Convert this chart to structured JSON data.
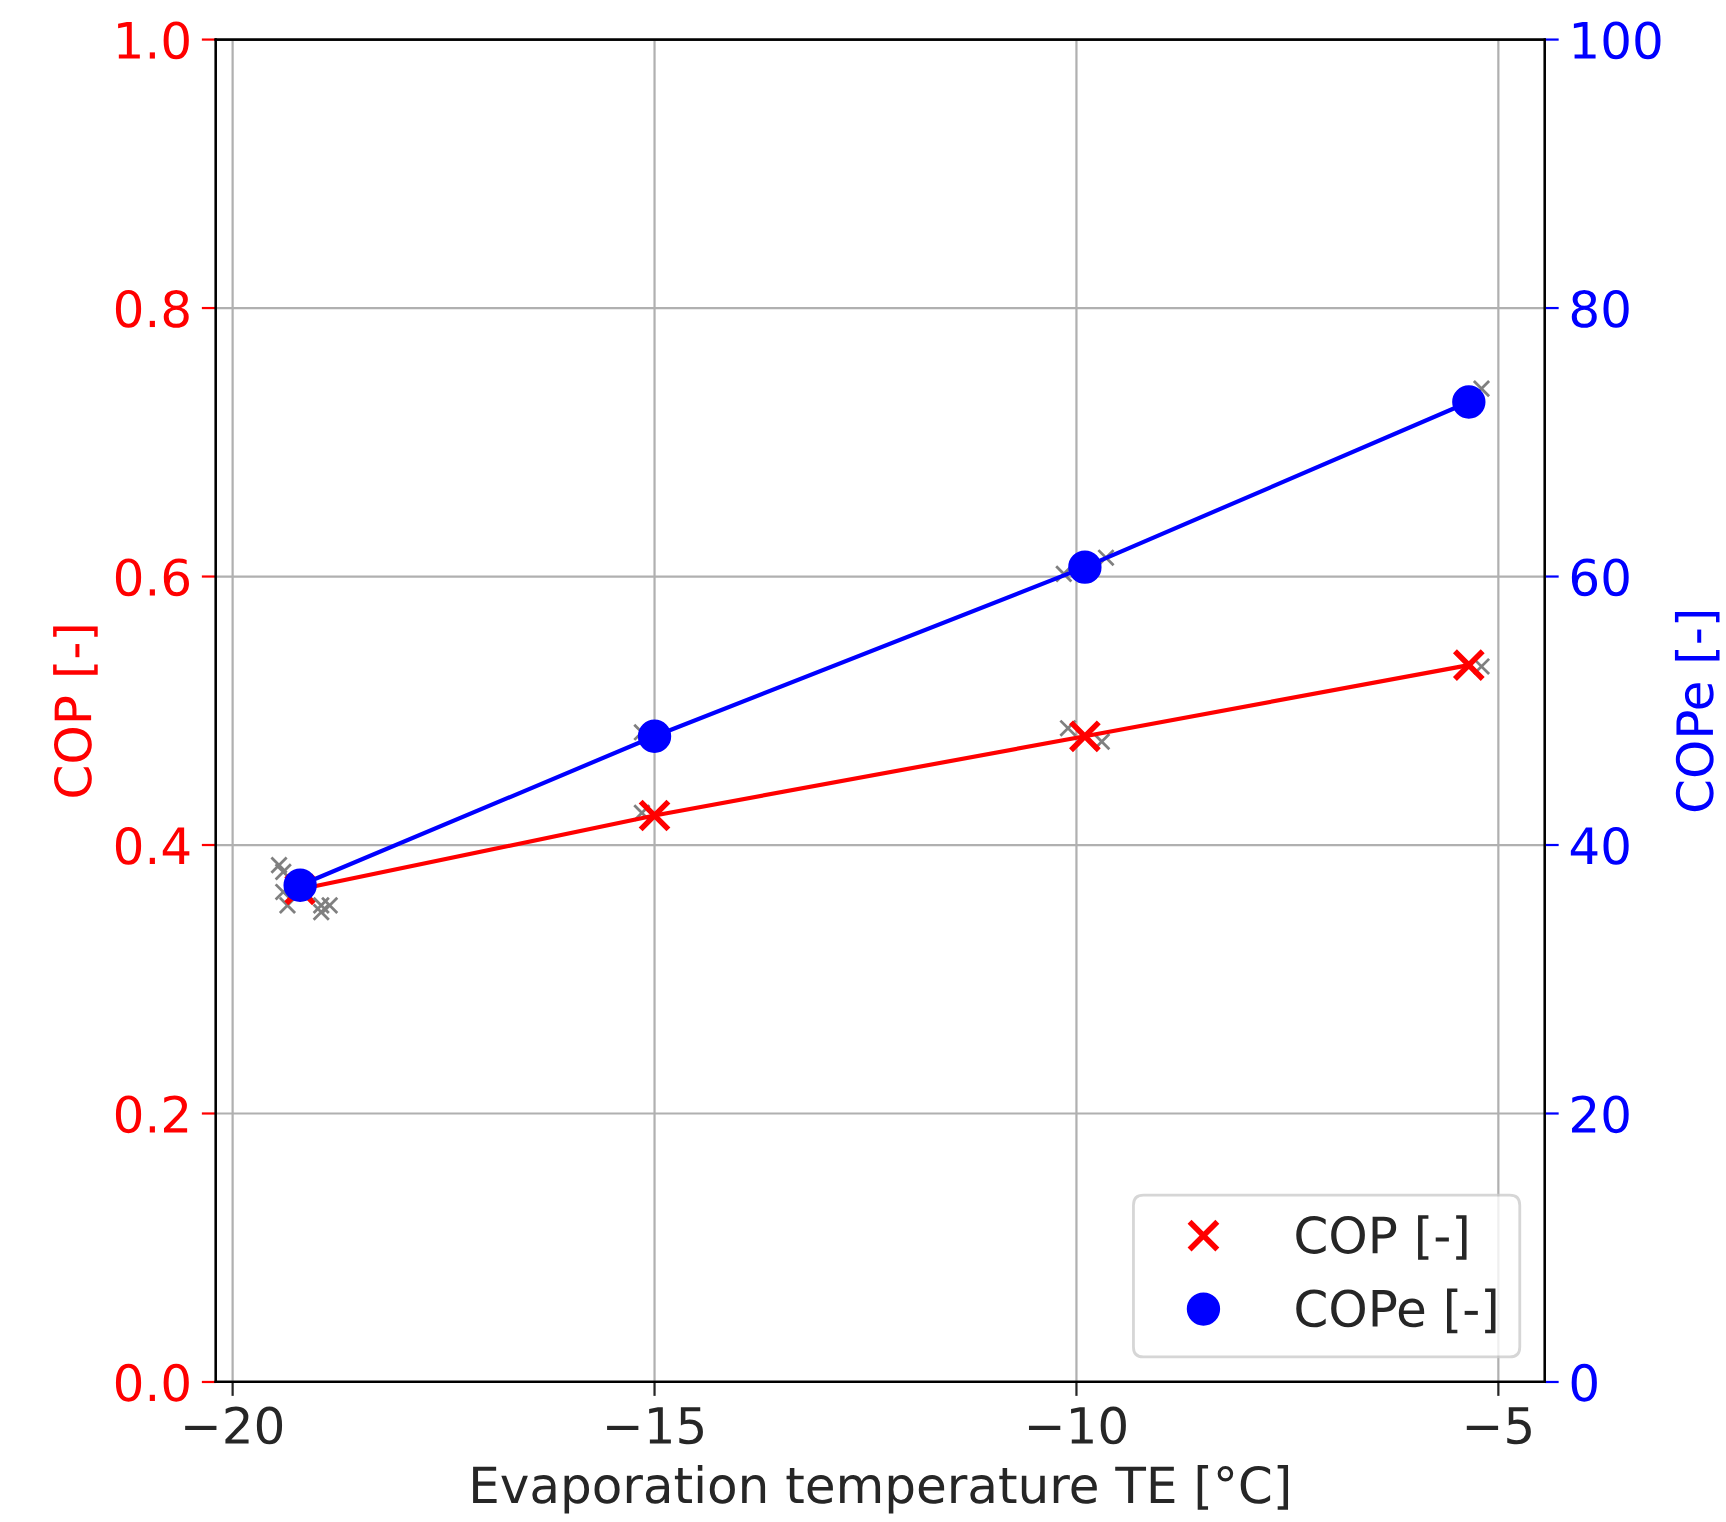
{
  "chart_data": {
    "type": "line",
    "xlabel": "Evaporation temperature TE [°C]",
    "ylabel": "COP [-]",
    "y2label": "COPe [-]",
    "xlim": [
      -20.2,
      -4.45
    ],
    "xticks": [
      {
        "value": -20,
        "label": "−20"
      },
      {
        "value": -15,
        "label": "−15"
      },
      {
        "value": -10,
        "label": "−10"
      },
      {
        "value": -5,
        "label": "−5"
      }
    ],
    "ylim": [
      0,
      1
    ],
    "yticks": [
      {
        "value": 0,
        "label": "0.0"
      },
      {
        "value": 0.2,
        "label": "0.2"
      },
      {
        "value": 0.4,
        "label": "0.4"
      },
      {
        "value": 0.6,
        "label": "0.6"
      },
      {
        "value": 0.8,
        "label": "0.8"
      },
      {
        "value": 1,
        "label": "1.0"
      }
    ],
    "y2lim": [
      0,
      100
    ],
    "y2ticks": [
      0,
      20,
      40,
      60,
      80,
      100
    ],
    "grid": true,
    "legend": "bottom right",
    "series": [
      {
        "type": "scatter",
        "color": "#808080",
        "marker": "cross",
        "x": [
          -19.4,
          -19.35,
          -18.95,
          -18.85,
          -19.4,
          -15.15,
          -10.1,
          -9.7,
          -5.2
        ],
        "values": [
          0.38,
          0.355,
          0.35,
          0.355,
          0.365,
          0.424,
          0.487,
          0.477,
          0.533
        ]
      },
      {
        "type": "scatter",
        "color": "#808080",
        "marker": "cross",
        "axis": "y2",
        "x": [
          -19.45,
          -18.95,
          -15.15,
          -10.15,
          -9.65,
          -5.2
        ],
        "values": [
          38.5,
          35.5,
          48.4,
          60.2,
          61.4,
          74.0
        ]
      },
      {
        "name": "COP [-]",
        "color": "#ff0000",
        "marker": "cross",
        "line_style": "solid",
        "x": [
          -19.2,
          -15,
          -9.9,
          -5.35
        ],
        "values": [
          0.367,
          0.422,
          0.481,
          0.534
        ]
      },
      {
        "name": "COPe [-]",
        "color": "#0000ff",
        "marker": "circle",
        "line_style": "solid",
        "axis": "y2",
        "x": [
          -19.2,
          -15,
          -9.9,
          -5.35
        ],
        "values": [
          37.0,
          48.1,
          60.7,
          73.0
        ]
      }
    ]
  }
}
